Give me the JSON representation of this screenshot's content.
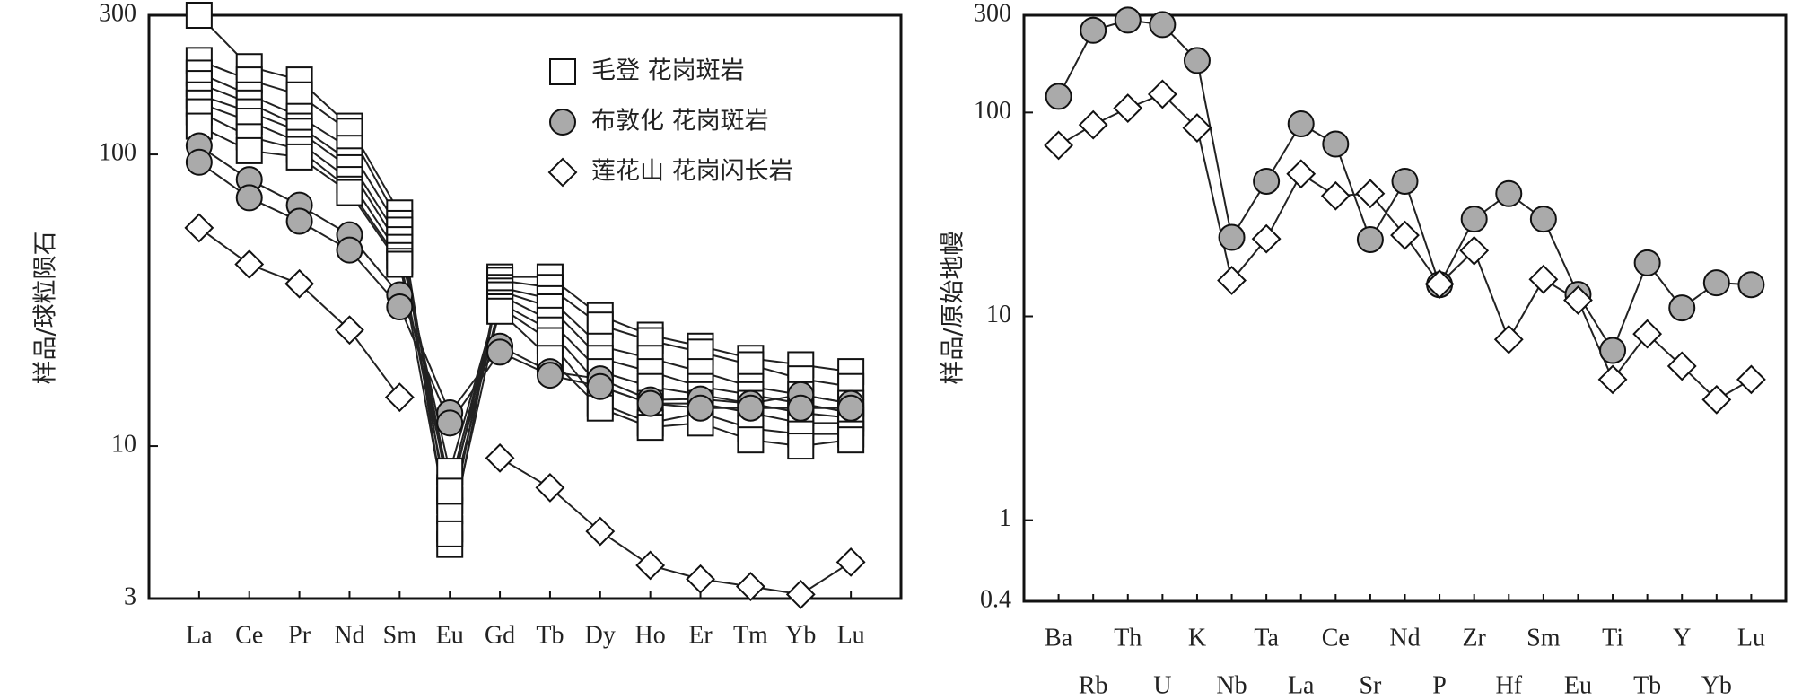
{
  "chart_data": [
    {
      "type": "line",
      "y_label": "样品/球粒陨石",
      "yscale": "log",
      "ylim": [
        3,
        300
      ],
      "yticks": [
        3,
        10,
        100,
        300
      ],
      "legend": "upper right",
      "categories": [
        "La",
        "Ce",
        "Pr",
        "Nd",
        "Sm",
        "Eu",
        "Gd",
        "Tb",
        "Dy",
        "Ho",
        "Er",
        "Tm",
        "Yb",
        "Lu"
      ],
      "series": [
        {
          "name": "毛登 花岗斑岩",
          "marker": "square",
          "color": "#ffffff",
          "values": [
            [
              300,
              200,
              180,
              125,
              63,
              5.2,
              38,
              38,
              28,
              24,
              22,
              20,
              19,
              18
            ],
            [
              210,
              180,
              160,
              120,
              58,
              4.6,
              37,
              35,
              26,
              23,
              21,
              19,
              17,
              16
            ],
            [
              190,
              160,
              135,
              105,
              55,
              6.5,
              35,
              32,
              22,
              20,
              18,
              16,
              15,
              14
            ],
            [
              175,
              150,
              125,
              95,
              51,
              7.2,
              34,
              30,
              20,
              18,
              16,
              15,
              14,
              13
            ],
            [
              160,
              140,
              120,
              90,
              48,
              8.2,
              33,
              27,
              18,
              16,
              15,
              14,
              13,
              12.5
            ],
            [
              150,
              130,
              110,
              82,
              45,
              6,
              31,
              25,
              16,
              14,
              14,
              13,
              12,
              12
            ],
            [
              140,
              115,
              104,
              76,
              43,
              5,
              30,
              23,
              14,
              12,
              13,
              11.5,
              11,
              11
            ],
            [
              125,
              103,
              98,
              74,
              42,
              7,
              29,
              20,
              13.5,
              11.6,
              12,
              10.5,
              10,
              10.5
            ]
          ]
        },
        {
          "name": "布敦化 花岗斑岩",
          "marker": "circle",
          "color": "#aaaaaa",
          "values": [
            [
              107,
              82,
              67,
              53,
              33,
              13,
              22,
              18,
              17,
              14.4,
              14.5,
              14,
              15,
              14
            ],
            [
              94,
              71,
              59,
              47,
              30,
              12,
              21,
              17.5,
              16,
              14,
              13.5,
              13.5,
              13.5,
              13.5
            ]
          ]
        },
        {
          "name": "莲花山 花岗闪长岩",
          "marker": "diamond",
          "color": "#ffffff",
          "values": [
            [
              56,
              42,
              36,
              25,
              14.7,
              null,
              9.1,
              7.2,
              5.1,
              3.9,
              3.5,
              3.3,
              3.1,
              4.0
            ]
          ]
        }
      ]
    },
    {
      "type": "line",
      "y_label": "样品/原始地幔",
      "yscale": "log",
      "ylim": [
        0.4,
        300
      ],
      "yticks": [
        0.4,
        1,
        10,
        100,
        300
      ],
      "categories": [
        "Ba",
        "Rb",
        "Th",
        "U",
        "K",
        "Nb",
        "Ta",
        "La",
        "Ce",
        "Sr",
        "Nd",
        "P",
        "Zr",
        "Hf",
        "Sm",
        "Eu",
        "Ti",
        "Tb",
        "Y",
        "Yb",
        "Lu"
      ],
      "series": [
        {
          "marker": "circle",
          "color": "#aaaaaa",
          "values": [
            [
              120,
              253,
              284,
              270,
              180,
              24.4,
              46,
              88,
              70,
              23.8,
              46,
              14.3,
              30,
              40,
              30,
              12.8,
              6.8,
              18.3,
              11,
              14.6,
              14.3
            ]
          ]
        },
        {
          "marker": "diamond",
          "color": "#ffffff",
          "values": [
            [
              69,
              87,
              105,
              123,
              84,
              15,
              24,
              50,
              39,
              40,
              25,
              14.4,
              21,
              7.7,
              15.2,
              12,
              4.9,
              8.2,
              5.7,
              3.9,
              4.9
            ]
          ]
        }
      ]
    }
  ]
}
